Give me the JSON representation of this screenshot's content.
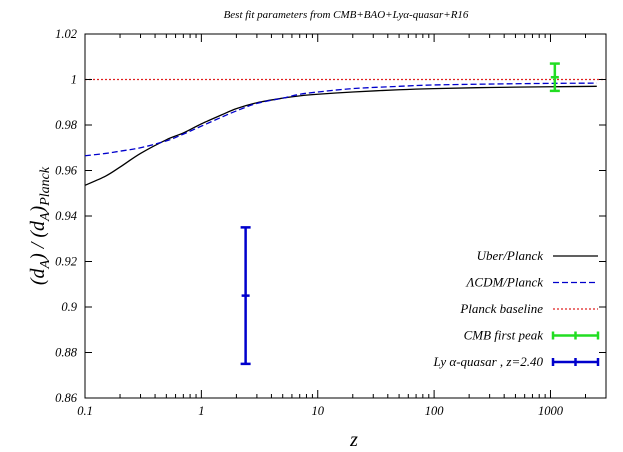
{
  "chart_data": {
    "type": "line",
    "title": "Best fit parameters from CMB+BAO+Lyα-quasar+R16",
    "xlabel": "z",
    "ylabel": {
      "main": "(d",
      "sub1": "A",
      "mid": ") / (d",
      "sub2": "A",
      "end": ")",
      "sub3": "Planck"
    },
    "xscale": "log",
    "xlim": [
      0.1,
      3000
    ],
    "ylim": [
      0.86,
      1.02
    ],
    "xticks": [
      {
        "value": 0.1,
        "label": "0.1"
      },
      {
        "value": 1,
        "label": "1"
      },
      {
        "value": 10,
        "label": "10"
      },
      {
        "value": 100,
        "label": "100"
      },
      {
        "value": 1000,
        "label": "1000"
      }
    ],
    "yticks": [
      {
        "value": 0.86,
        "label": "0.86"
      },
      {
        "value": 0.88,
        "label": "0.88"
      },
      {
        "value": 0.9,
        "label": "0.9"
      },
      {
        "value": 0.92,
        "label": "0.92"
      },
      {
        "value": 0.94,
        "label": "0.94"
      },
      {
        "value": 0.96,
        "label": "0.96"
      },
      {
        "value": 0.98,
        "label": "0.98"
      },
      {
        "value": 1.0,
        "label": "1"
      },
      {
        "value": 1.02,
        "label": "1.02"
      }
    ],
    "grid": false,
    "legend_position": "bottom-right",
    "series": [
      {
        "name": "Uber/Planck",
        "kind": "line",
        "style": "solid",
        "color": "#000000",
        "x": [
          0.1,
          0.15,
          0.2,
          0.3,
          0.5,
          0.7,
          1.0,
          1.5,
          2.0,
          3.0,
          5.0,
          7.0,
          10,
          20,
          50,
          100,
          300,
          1000,
          2500
        ],
        "y": [
          0.9535,
          0.9575,
          0.9615,
          0.9675,
          0.9735,
          0.9765,
          0.9805,
          0.9845,
          0.9872,
          0.9898,
          0.9918,
          0.9928,
          0.9935,
          0.9945,
          0.9955,
          0.996,
          0.9965,
          0.9968,
          0.997
        ]
      },
      {
        "name": "ΛCDM/Planck",
        "kind": "line",
        "style": "dashed",
        "color": "#0000cc",
        "x": [
          0.1,
          0.15,
          0.2,
          0.3,
          0.5,
          0.7,
          1.0,
          1.5,
          2.0,
          3.0,
          5.0,
          7.0,
          10,
          20,
          50,
          100,
          300,
          1000,
          2500
        ],
        "y": [
          0.9665,
          0.9675,
          0.9685,
          0.97,
          0.973,
          0.976,
          0.9795,
          0.9835,
          0.9862,
          0.9895,
          0.9918,
          0.9935,
          0.9945,
          0.996,
          0.997,
          0.9976,
          0.998,
          0.9983,
          0.9984
        ]
      },
      {
        "name": "Planck baseline",
        "kind": "line",
        "style": "dotted",
        "color": "#e02020",
        "x": [
          0.1,
          3000
        ],
        "y": [
          1.0,
          1.0
        ]
      },
      {
        "name": "CMB first peak",
        "kind": "errorbar",
        "color": "#22dd22",
        "x": 1090,
        "y": 1.001,
        "yerr": 0.006
      },
      {
        "name": "Ly α-quasar , z=2.40",
        "kind": "errorbar",
        "color": "#0000cc",
        "x": 2.4,
        "y": 0.905,
        "yerr": 0.03
      }
    ]
  }
}
